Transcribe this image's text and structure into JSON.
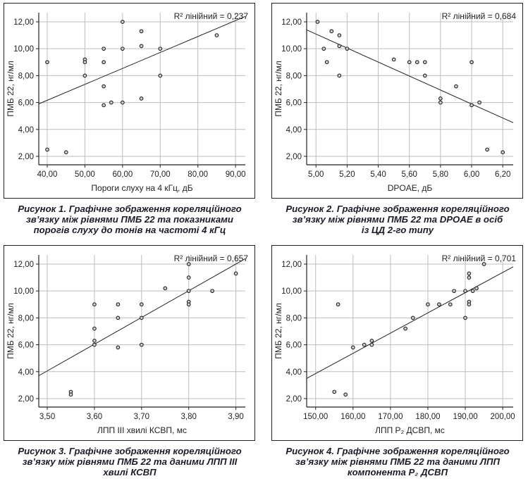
{
  "chart_data": [
    {
      "type": "scatter",
      "r2_label": "R² лінійний = 0,237",
      "xlabel": "Пороги слуху на 4 кГц, дБ",
      "ylabel": "ПМБ 22, нг/мл",
      "xlim": [
        37.75,
        92.6
      ],
      "ylim": [
        1.37,
        12.68
      ],
      "xticks": [
        40,
        50,
        60,
        70,
        80,
        90
      ],
      "xtick_labels": [
        "40,00",
        "50,00",
        "60,00",
        "70,00",
        "80,00",
        "90,00"
      ],
      "yticks": [
        2,
        4,
        6,
        8,
        10,
        12
      ],
      "ytick_labels": [
        "2,00",
        "4,00",
        "6,00",
        "8,00",
        "10,00",
        "12,00"
      ],
      "grid": true,
      "fit_line": [
        [
          37.75,
          5.9
        ],
        [
          92.6,
          12.4
        ]
      ],
      "points": [
        [
          40,
          9
        ],
        [
          40,
          2.5
        ],
        [
          45,
          2.3
        ],
        [
          50,
          9.2
        ],
        [
          50,
          9
        ],
        [
          50,
          8
        ],
        [
          55,
          10
        ],
        [
          55,
          9
        ],
        [
          55,
          7.2
        ],
        [
          55,
          5.8
        ],
        [
          57,
          6
        ],
        [
          60,
          12
        ],
        [
          60,
          10
        ],
        [
          60,
          6
        ],
        [
          65,
          11.3
        ],
        [
          65,
          10.2
        ],
        [
          65,
          6.3
        ],
        [
          70,
          10
        ],
        [
          70,
          8
        ],
        [
          85,
          11
        ]
      ],
      "caption": [
        "Рисунок 1.  Графічне зображення кореляційного",
        "зв’язку між рівнями ПМБ 22 та показниками",
        "порогів слуху до тонів на частоті 4 кГц"
      ]
    },
    {
      "type": "scatter",
      "r2_label": "R² лінійний = 0,684",
      "xlabel": "DPOAE, дБ",
      "ylabel": "ПМБ 22, нг/мл",
      "xlim": [
        4.94,
        6.267
      ],
      "ylim": [
        1.37,
        12.68
      ],
      "xticks": [
        5.0,
        5.2,
        5.4,
        5.6,
        5.8,
        6.0,
        6.2
      ],
      "xtick_labels": [
        "5,00",
        "5,20",
        "5,40",
        "5,60",
        "5,80",
        "6,00",
        "6,20"
      ],
      "yticks": [
        2,
        4,
        6,
        8,
        10,
        12
      ],
      "ytick_labels": [
        "2,00",
        "4,00",
        "6,00",
        "8,00",
        "10,00",
        "12,00"
      ],
      "grid": true,
      "fit_line": [
        [
          4.94,
          11.4
        ],
        [
          6.267,
          4.5
        ]
      ],
      "points": [
        [
          5.01,
          12
        ],
        [
          5.05,
          10
        ],
        [
          5.07,
          9
        ],
        [
          5.1,
          11.3
        ],
        [
          5.15,
          11
        ],
        [
          5.15,
          10.2
        ],
        [
          5.15,
          8
        ],
        [
          5.2,
          10
        ],
        [
          5.5,
          9.2
        ],
        [
          5.6,
          9
        ],
        [
          5.65,
          9
        ],
        [
          5.7,
          9
        ],
        [
          5.7,
          8
        ],
        [
          5.8,
          6.3
        ],
        [
          5.8,
          6
        ],
        [
          5.9,
          7.2
        ],
        [
          6.0,
          9
        ],
        [
          6.0,
          5.8
        ],
        [
          6.05,
          6
        ],
        [
          6.1,
          2.5
        ],
        [
          6.2,
          2.3
        ]
      ],
      "caption": [
        "Рисунок 2.  Графічне зображення кореляційного",
        "зв’язку між рівнями ПМБ 22 та DPOAE в осіб",
        "із ЦД 2-го типу"
      ]
    },
    {
      "type": "scatter",
      "r2_label": "R² лінійний = 0,657",
      "xlabel": "ЛПП III хвилі КСВП, мс",
      "ylabel": "ПМБ 22, нг/мл",
      "xlim": [
        3.482,
        3.92
      ],
      "ylim": [
        1.37,
        12.68
      ],
      "xticks": [
        3.5,
        3.6,
        3.7,
        3.8,
        3.9
      ],
      "xtick_labels": [
        "3,50",
        "3,60",
        "3,70",
        "3,80",
        "3,90"
      ],
      "yticks": [
        2,
        4,
        6,
        8,
        10,
        12
      ],
      "ytick_labels": [
        "2,00",
        "4,00",
        "6,00",
        "8,00",
        "10,00",
        "12,00"
      ],
      "grid": true,
      "fit_line": [
        [
          3.482,
          3.7
        ],
        [
          3.92,
          12.4
        ]
      ],
      "points": [
        [
          3.55,
          2.5
        ],
        [
          3.55,
          2.3
        ],
        [
          3.6,
          9
        ],
        [
          3.6,
          7.2
        ],
        [
          3.6,
          6.3
        ],
        [
          3.6,
          6
        ],
        [
          3.65,
          9
        ],
        [
          3.65,
          8
        ],
        [
          3.65,
          5.8
        ],
        [
          3.7,
          9
        ],
        [
          3.7,
          8
        ],
        [
          3.7,
          6
        ],
        [
          3.75,
          10.2
        ],
        [
          3.8,
          12
        ],
        [
          3.8,
          11
        ],
        [
          3.8,
          10
        ],
        [
          3.8,
          9.2
        ],
        [
          3.8,
          9
        ],
        [
          3.85,
          10
        ],
        [
          3.9,
          11.3
        ]
      ],
      "caption": [
        "Рисунок 3.  Графічне зображення кореляційного",
        "зв’язку між рівнями ПМБ 22 та даними ЛПП III",
        "хвилі КСВП"
      ]
    },
    {
      "type": "scatter",
      "r2_label": "R² лінійний = 0,701",
      "xlabel": "ЛПП P₂ ДСВП, мс",
      "ylabel": "ПМБ 22, нг/мл",
      "xlim": [
        147.6,
        202.8
      ],
      "ylim": [
        1.37,
        12.68
      ],
      "xticks": [
        150,
        160,
        170,
        180,
        190,
        200
      ],
      "xtick_labels": [
        "150,00",
        "160,00",
        "170,00",
        "180,00",
        "190,00",
        "200,00"
      ],
      "yticks": [
        2,
        4,
        6,
        8,
        10,
        12
      ],
      "ytick_labels": [
        "2,00",
        "4,00",
        "6,00",
        "8,00",
        "10,00",
        "12,00"
      ],
      "grid": true,
      "fit_line": [
        [
          147.6,
          3.5
        ],
        [
          202.8,
          11.8
        ]
      ],
      "points": [
        [
          155,
          2.5
        ],
        [
          156,
          9
        ],
        [
          158,
          2.3
        ],
        [
          160,
          5.8
        ],
        [
          163,
          6
        ],
        [
          165,
          6.3
        ],
        [
          165,
          6
        ],
        [
          174,
          7.2
        ],
        [
          176,
          8
        ],
        [
          180,
          9
        ],
        [
          183,
          9
        ],
        [
          186,
          9
        ],
        [
          187,
          10
        ],
        [
          190,
          10
        ],
        [
          190,
          8
        ],
        [
          191,
          11.3
        ],
        [
          191,
          11
        ],
        [
          191,
          9.2
        ],
        [
          191,
          9
        ],
        [
          192,
          10
        ],
        [
          193,
          10.2
        ],
        [
          195,
          12
        ]
      ],
      "caption": [
        "Рисунок 4.  Графічне зображення кореляційного",
        "зв’язку між рівнями ПМБ 22 та даними ЛПП",
        "компонента P₂ ДСВП"
      ]
    }
  ]
}
